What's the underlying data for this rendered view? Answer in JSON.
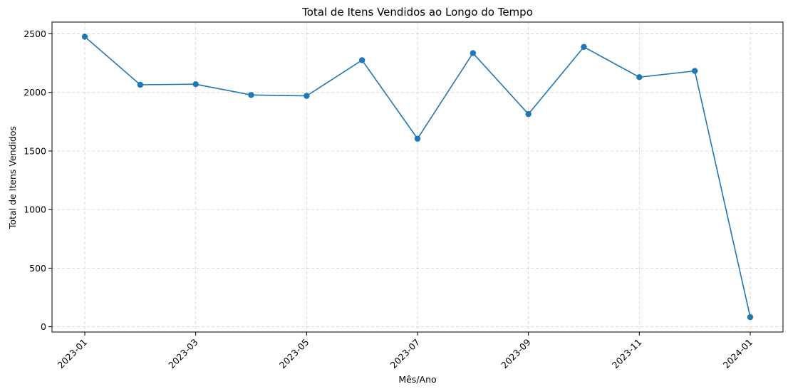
{
  "chart_data": {
    "type": "line",
    "title": "Total de Itens Vendidos ao Longo do Tempo",
    "xlabel": "Mês/Ano",
    "ylabel": "Total de Itens Vendidos",
    "x": [
      "2023-01",
      "2023-02",
      "2023-03",
      "2023-04",
      "2023-05",
      "2023-06",
      "2023-07",
      "2023-08",
      "2023-09",
      "2023-10",
      "2023-11",
      "2023-12",
      "2024-01"
    ],
    "series": [
      {
        "values": [
          2475,
          2065,
          2070,
          1978,
          1970,
          2275,
          1605,
          2335,
          1815,
          2388,
          2130,
          2183,
          82
        ]
      }
    ],
    "x_tick_labels": [
      "2023-01",
      "2023-03",
      "2023-05",
      "2023-07",
      "2023-09",
      "2023-11",
      "2024-01"
    ],
    "y_ticks": [
      0,
      500,
      1000,
      1500,
      2000,
      2500
    ],
    "ylim": [
      -45,
      2600
    ],
    "grid": true,
    "marker": "circle",
    "color": "#1f77b4"
  }
}
